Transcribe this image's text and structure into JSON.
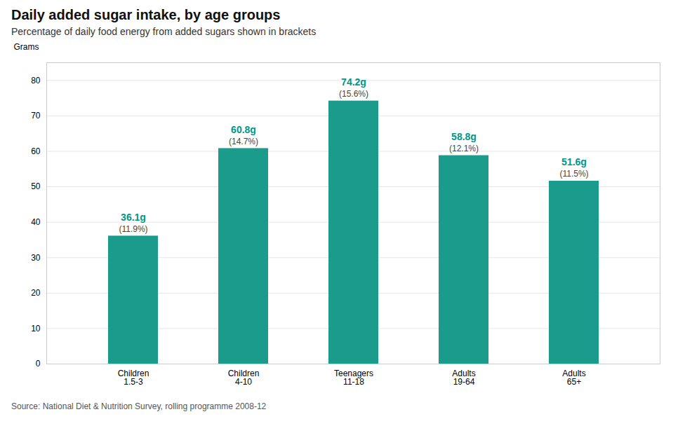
{
  "chart_data": {
    "type": "bar",
    "title": "Daily added sugar intake, by age groups",
    "subtitle": "Percentage of daily food energy from added sugars shown in brackets",
    "ylabel": "Grams",
    "source": "Source: National Diet & Nutrition Survey, rolling programme 2008-12",
    "categories": [
      "Children\n1.5-3",
      "Children\n4-10",
      "Teenagers\n11-18",
      "Adults\n19-64",
      "Adults\n65+"
    ],
    "values": [
      36.1,
      60.8,
      74.2,
      58.8,
      51.6
    ],
    "value_labels": [
      "36.1g",
      "60.8g",
      "74.2g",
      "58.8g",
      "51.6g"
    ],
    "percentages": [
      "(11.9%)",
      "(14.7%)",
      "(15.6%)",
      "(12.1%)",
      "(11.5%)"
    ],
    "data_labels": true,
    "color": "#1A9B8C",
    "ylim": [
      0,
      85
    ],
    "yticks": [
      0,
      10,
      20,
      30,
      40,
      50,
      60,
      70,
      80
    ],
    "grid": true
  }
}
